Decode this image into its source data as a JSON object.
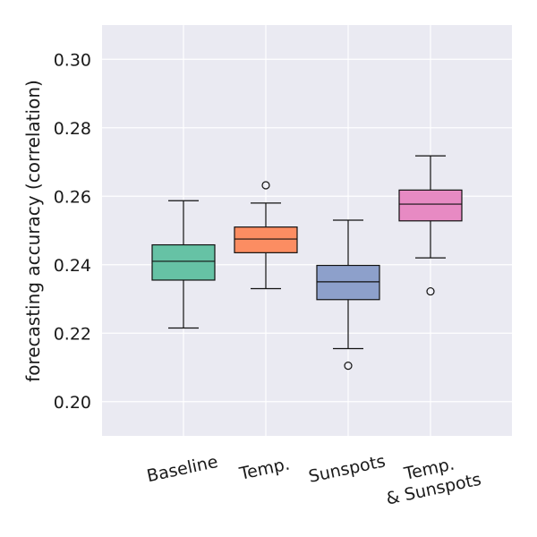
{
  "chart_data": {
    "type": "box",
    "ylabel": "forecasting accuracy (correlation)",
    "xlabel": "",
    "ylim": [
      0.19,
      0.31
    ],
    "yticks": [
      0.2,
      0.22,
      0.24,
      0.26,
      0.28,
      0.3
    ],
    "ytick_labels": [
      "0.20",
      "0.22",
      "0.24",
      "0.26",
      "0.28",
      "0.30"
    ],
    "grid": true,
    "background_color": "#eaeaf2",
    "categories": [
      {
        "label": [
          "Baseline"
        ],
        "color": "#66c2a5",
        "whisker_low": 0.2215,
        "q1": 0.2355,
        "median": 0.241,
        "q3": 0.2458,
        "whisker_high": 0.2587,
        "outliers": []
      },
      {
        "label": [
          "Temp."
        ],
        "color": "#fc8d62",
        "whisker_low": 0.233,
        "q1": 0.2435,
        "median": 0.2475,
        "q3": 0.251,
        "whisker_high": 0.258,
        "outliers": [
          0.2632
        ]
      },
      {
        "label": [
          "Sunspots"
        ],
        "color": "#8da0cb",
        "whisker_low": 0.2155,
        "q1": 0.2298,
        "median": 0.235,
        "q3": 0.2398,
        "whisker_high": 0.253,
        "outliers": [
          0.2105
        ]
      },
      {
        "label": [
          "Temp.",
          "& Sunspots"
        ],
        "color": "#e78ac3",
        "whisker_low": 0.242,
        "q1": 0.2528,
        "median": 0.2577,
        "q3": 0.2618,
        "whisker_high": 0.2718,
        "outliers": [
          0.2322
        ]
      }
    ]
  }
}
